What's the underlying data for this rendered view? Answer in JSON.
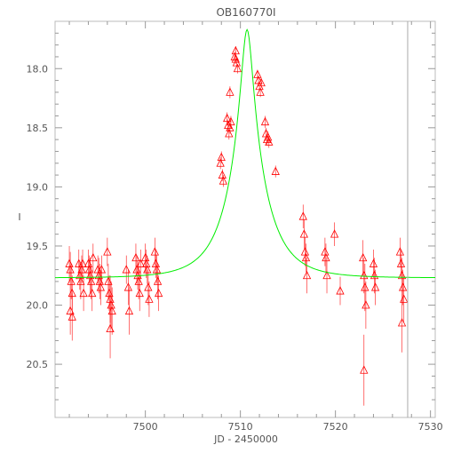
{
  "chart_data": {
    "type": "scatter",
    "title": "OB160770I",
    "xlabel": "JD - 2450000",
    "ylabel": "I",
    "xlim": [
      7490.5,
      7530.5
    ],
    "ylim": [
      20.95,
      17.6
    ],
    "y_inverted": true,
    "x_ticks": [
      "7500",
      "7510",
      "7520",
      "7530"
    ],
    "y_ticks": [
      "18.0",
      "18.5",
      "19.0",
      "19.5",
      "20.0",
      "20.5"
    ],
    "x_tick_values": [
      7500,
      7510,
      7520,
      7530
    ],
    "y_tick_values": [
      18.0,
      18.5,
      19.0,
      19.5,
      20.0,
      20.5
    ],
    "vertical_line_x": 7527.6,
    "model_curve": {
      "color": "#00ee00",
      "t0": 7510.7,
      "peak_mag": 17.67,
      "baseline_mag": 19.77,
      "u0": 0.146,
      "tE": 3.8
    },
    "series": [
      {
        "marker": "open-triangle",
        "color": "#ff0000",
        "points": [
          [
            7492.0,
            19.65,
            0.15
          ],
          [
            7492.1,
            19.7,
            0.15
          ],
          [
            7492.2,
            19.8,
            0.15
          ],
          [
            7492.3,
            19.9,
            0.15
          ],
          [
            7492.1,
            20.05,
            0.2
          ],
          [
            7492.3,
            20.1,
            0.2
          ],
          [
            7493.0,
            19.65,
            0.12
          ],
          [
            7493.1,
            19.75,
            0.12
          ],
          [
            7493.2,
            19.8,
            0.15
          ],
          [
            7493.3,
            19.7,
            0.12
          ],
          [
            7493.4,
            19.65,
            0.12
          ],
          [
            7493.5,
            19.9,
            0.15
          ],
          [
            7494.0,
            19.65,
            0.12
          ],
          [
            7494.1,
            19.7,
            0.12
          ],
          [
            7494.2,
            19.75,
            0.15
          ],
          [
            7494.3,
            19.8,
            0.15
          ],
          [
            7494.4,
            19.9,
            0.15
          ],
          [
            7494.5,
            19.6,
            0.12
          ],
          [
            7495.0,
            19.7,
            0.12
          ],
          [
            7495.1,
            19.75,
            0.15
          ],
          [
            7495.2,
            19.8,
            0.15
          ],
          [
            7495.3,
            19.85,
            0.15
          ],
          [
            7495.4,
            19.7,
            0.12
          ],
          [
            7496.0,
            19.55,
            0.12
          ],
          [
            7496.1,
            19.8,
            0.15
          ],
          [
            7496.2,
            19.9,
            0.15
          ],
          [
            7496.3,
            19.95,
            0.2
          ],
          [
            7496.4,
            20.0,
            0.2
          ],
          [
            7496.5,
            20.05,
            0.2
          ],
          [
            7496.3,
            20.2,
            0.25
          ],
          [
            7498.0,
            19.7,
            0.12
          ],
          [
            7498.2,
            19.85,
            0.15
          ],
          [
            7498.3,
            20.05,
            0.2
          ],
          [
            7499.0,
            19.6,
            0.12
          ],
          [
            7499.1,
            19.7,
            0.12
          ],
          [
            7499.2,
            19.75,
            0.12
          ],
          [
            7499.3,
            19.8,
            0.15
          ],
          [
            7499.4,
            19.9,
            0.15
          ],
          [
            7499.5,
            19.65,
            0.12
          ],
          [
            7500.0,
            19.6,
            0.12
          ],
          [
            7500.1,
            19.65,
            0.12
          ],
          [
            7500.2,
            19.7,
            0.12
          ],
          [
            7500.3,
            19.85,
            0.15
          ],
          [
            7500.4,
            19.95,
            0.15
          ],
          [
            7501.0,
            19.55,
            0.12
          ],
          [
            7501.1,
            19.65,
            0.12
          ],
          [
            7501.2,
            19.7,
            0.12
          ],
          [
            7501.3,
            19.8,
            0.15
          ],
          [
            7501.4,
            19.9,
            0.15
          ],
          [
            7507.9,
            18.8,
            0.05
          ],
          [
            7508.0,
            18.75,
            0.05
          ],
          [
            7508.1,
            18.9,
            0.05
          ],
          [
            7508.2,
            18.95,
            0.05
          ],
          [
            7508.6,
            18.42,
            0.05
          ],
          [
            7508.7,
            18.48,
            0.05
          ],
          [
            7508.8,
            18.55,
            0.05
          ],
          [
            7508.9,
            18.5,
            0.05
          ],
          [
            7508.9,
            18.2,
            0.05
          ],
          [
            7509.0,
            18.45,
            0.05
          ],
          [
            7509.4,
            17.9,
            0.04
          ],
          [
            7509.5,
            17.85,
            0.04
          ],
          [
            7509.6,
            17.95,
            0.04
          ],
          [
            7509.7,
            18.0,
            0.04
          ],
          [
            7509.5,
            17.92,
            0.04
          ],
          [
            7511.8,
            18.05,
            0.04
          ],
          [
            7511.9,
            18.1,
            0.04
          ],
          [
            7512.0,
            18.15,
            0.04
          ],
          [
            7512.1,
            18.2,
            0.04
          ],
          [
            7512.2,
            18.12,
            0.04
          ],
          [
            7512.6,
            18.45,
            0.05
          ],
          [
            7512.7,
            18.55,
            0.05
          ],
          [
            7512.8,
            18.6,
            0.05
          ],
          [
            7512.9,
            18.58,
            0.05
          ],
          [
            7513.0,
            18.62,
            0.05
          ],
          [
            7513.7,
            18.87,
            0.05
          ],
          [
            7516.6,
            19.25,
            0.1
          ],
          [
            7516.7,
            19.4,
            0.12
          ],
          [
            7516.8,
            19.55,
            0.12
          ],
          [
            7516.9,
            19.6,
            0.12
          ],
          [
            7517.0,
            19.75,
            0.15
          ],
          [
            7518.9,
            19.55,
            0.12
          ],
          [
            7519.0,
            19.6,
            0.12
          ],
          [
            7519.1,
            19.75,
            0.15
          ],
          [
            7519.9,
            19.4,
            0.1
          ],
          [
            7520.5,
            19.88,
            0.12
          ],
          [
            7522.9,
            19.6,
            0.15
          ],
          [
            7523.0,
            19.75,
            0.15
          ],
          [
            7523.1,
            19.85,
            0.2
          ],
          [
            7523.2,
            20.0,
            0.2
          ],
          [
            7523.0,
            20.55,
            0.3
          ],
          [
            7524.0,
            19.65,
            0.12
          ],
          [
            7524.1,
            19.75,
            0.15
          ],
          [
            7524.2,
            19.85,
            0.15
          ],
          [
            7526.8,
            19.55,
            0.12
          ],
          [
            7526.9,
            19.65,
            0.12
          ],
          [
            7527.0,
            19.75,
            0.15
          ],
          [
            7527.1,
            19.85,
            0.15
          ],
          [
            7527.2,
            19.95,
            0.2
          ],
          [
            7527.0,
            20.15,
            0.25
          ]
        ]
      }
    ]
  }
}
